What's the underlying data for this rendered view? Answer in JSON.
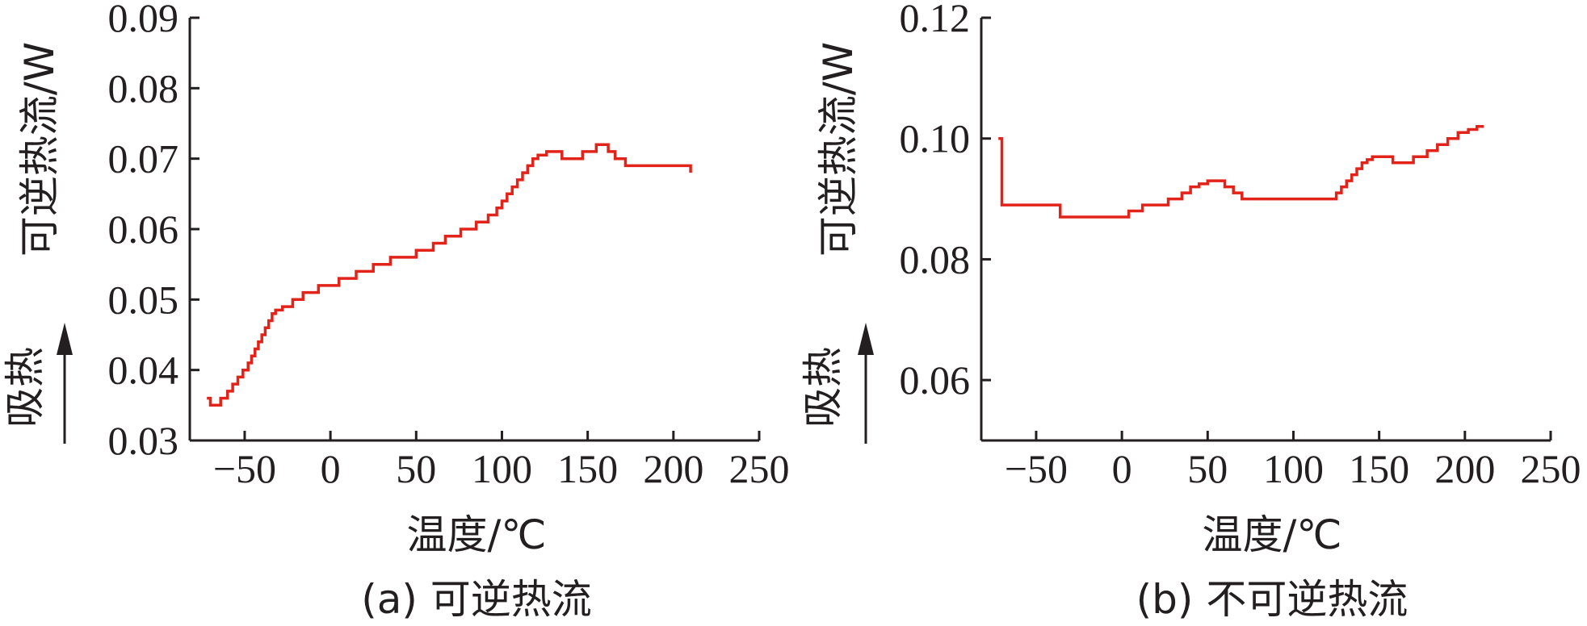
{
  "chart_data": [
    {
      "type": "line",
      "caption": "(a) 可逆热流",
      "xlabel": "温度/℃",
      "ylabel": "可逆热流/W",
      "direction_label": "吸热",
      "xlim": [
        -82,
        250
      ],
      "ylim": [
        0.03,
        0.09
      ],
      "xticks": [
        -50,
        0,
        50,
        100,
        150,
        200,
        250
      ],
      "xtick_labels": [
        "−50",
        "0",
        "50",
        "100",
        "150",
        "200",
        "250"
      ],
      "yticks": [
        0.03,
        0.04,
        0.05,
        0.06,
        0.07,
        0.08,
        0.09
      ],
      "ytick_labels": [
        "0.03",
        "0.04",
        "0.05",
        "0.06",
        "0.07",
        "0.08",
        "0.09"
      ],
      "color": "#e2231a",
      "series": [
        {
          "x": [
            -72,
            -70,
            -64,
            -60,
            -57,
            -54,
            -51,
            -48,
            -46,
            -44,
            -42,
            -40,
            -38,
            -36,
            -34,
            -32,
            -28,
            -22,
            -16,
            -7,
            5,
            15,
            25,
            35,
            50,
            60,
            67,
            76,
            85,
            92,
            97,
            100,
            103,
            106,
            109,
            112,
            115,
            118,
            121,
            126,
            135,
            147,
            155,
            162,
            166,
            172,
            210
          ],
          "y": [
            0.036,
            0.035,
            0.036,
            0.037,
            0.038,
            0.039,
            0.04,
            0.041,
            0.042,
            0.043,
            0.044,
            0.045,
            0.046,
            0.047,
            0.048,
            0.0485,
            0.049,
            0.05,
            0.051,
            0.052,
            0.053,
            0.054,
            0.055,
            0.056,
            0.057,
            0.058,
            0.059,
            0.06,
            0.061,
            0.062,
            0.063,
            0.064,
            0.065,
            0.066,
            0.067,
            0.068,
            0.069,
            0.07,
            0.0705,
            0.071,
            0.07,
            0.071,
            0.072,
            0.071,
            0.07,
            0.069,
            0.068
          ]
        }
      ]
    },
    {
      "type": "line",
      "caption": "(b) 不可逆热流",
      "xlabel": "温度/℃",
      "ylabel": "可逆热流/W",
      "direction_label": "吸热",
      "xlim": [
        -82,
        250
      ],
      "ylim": [
        0.05,
        0.12
      ],
      "xticks": [
        -50,
        0,
        50,
        100,
        150,
        200,
        250
      ],
      "xtick_labels": [
        "−50",
        "0",
        "50",
        "100",
        "150",
        "200",
        "250"
      ],
      "yticks": [
        0.06,
        0.08,
        0.1,
        0.12
      ],
      "ytick_labels": [
        "0.06",
        "0.08",
        "0.10",
        "0.12"
      ],
      "color": "#e2231a",
      "series": [
        {
          "x": [
            -72,
            -70,
            -36,
            -10,
            4,
            12,
            27,
            35,
            40,
            45,
            50,
            60,
            65,
            70,
            125,
            128,
            131,
            134,
            137,
            140,
            143,
            146,
            158,
            170,
            178,
            184,
            190,
            196,
            202,
            207,
            211
          ],
          "y": [
            0.1,
            0.089,
            0.087,
            0.087,
            0.088,
            0.089,
            0.09,
            0.091,
            0.092,
            0.0925,
            0.093,
            0.092,
            0.091,
            0.09,
            0.091,
            0.092,
            0.093,
            0.094,
            0.095,
            0.096,
            0.0965,
            0.097,
            0.096,
            0.097,
            0.098,
            0.099,
            0.1,
            0.101,
            0.1015,
            0.102,
            0.102
          ]
        }
      ]
    }
  ]
}
